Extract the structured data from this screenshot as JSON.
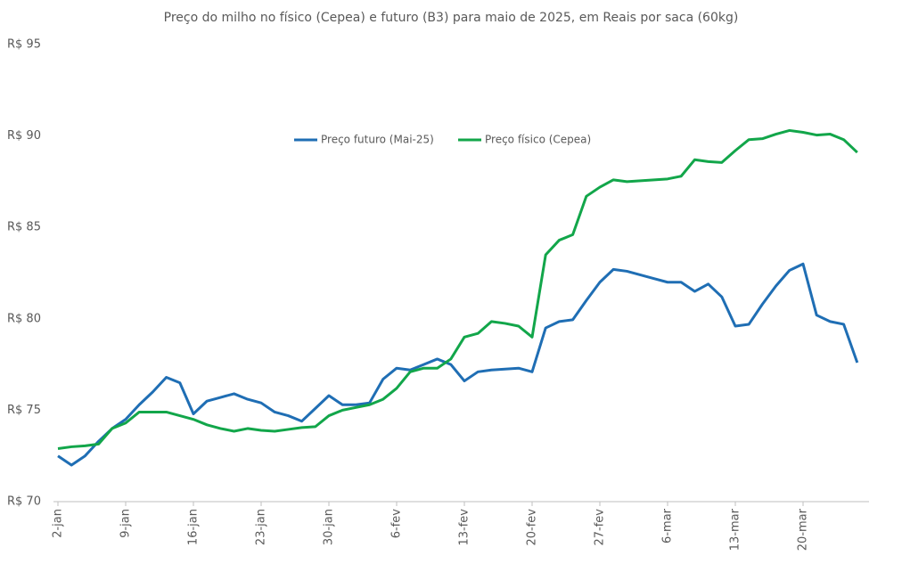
{
  "chart_data": {
    "type": "line",
    "title": "Preço do milho no físico (Cepea) e futuro (B3) para maio de 2025, em Reais por saca (60kg)",
    "categories": [
      "2-jan",
      null,
      null,
      null,
      null,
      "9-jan",
      null,
      null,
      null,
      null,
      "16-jan",
      null,
      null,
      null,
      null,
      "23-jan",
      null,
      null,
      null,
      null,
      "30-jan",
      null,
      null,
      null,
      null,
      "6-fev",
      null,
      null,
      null,
      null,
      "13-fev",
      null,
      null,
      null,
      null,
      "20-fev",
      null,
      null,
      null,
      null,
      "27-fev",
      null,
      null,
      null,
      null,
      "6-mar",
      null,
      null,
      null,
      null,
      "13-mar",
      null,
      null,
      null,
      null,
      "20-mar",
      null,
      null,
      null,
      null
    ],
    "series": [
      {
        "name": "Preço futuro (Mai-25)",
        "color": "#1f6eb4",
        "values": [
          72.5,
          72.0,
          72.5,
          73.3,
          74.0,
          74.5,
          75.3,
          76.0,
          76.8,
          76.5,
          74.8,
          75.5,
          75.7,
          75.9,
          75.6,
          75.4,
          74.9,
          74.7,
          74.4,
          75.1,
          75.8,
          75.3,
          75.3,
          75.4,
          76.7,
          77.3,
          77.2,
          77.5,
          77.8,
          77.5,
          76.6,
          77.1,
          77.2,
          77.25,
          77.3,
          77.1,
          79.5,
          79.85,
          79.95,
          81.0,
          82.0,
          82.7,
          82.6,
          82.4,
          82.2,
          82.0,
          82.0,
          81.5,
          81.9,
          81.2,
          79.6,
          79.7,
          80.8,
          81.8,
          82.65,
          83.0,
          80.2,
          79.85,
          79.7,
          77.6
        ]
      },
      {
        "name": "Preço físico (Cepea)",
        "color": "#12a64a",
        "values": [
          72.9,
          73.0,
          73.05,
          73.15,
          74.0,
          74.3,
          74.9,
          74.9,
          74.9,
          74.7,
          74.5,
          74.2,
          74.0,
          73.85,
          74.0,
          73.9,
          73.85,
          73.95,
          74.05,
          74.1,
          74.7,
          75.0,
          75.15,
          75.3,
          75.6,
          76.2,
          77.1,
          77.3,
          77.3,
          77.8,
          79.0,
          79.2,
          79.85,
          79.75,
          79.6,
          79.0,
          83.5,
          84.3,
          84.6,
          86.7,
          87.2,
          87.6,
          87.5,
          87.55,
          87.6,
          87.65,
          87.8,
          88.7,
          88.6,
          88.55,
          89.2,
          89.8,
          89.85,
          90.1,
          90.3,
          90.2,
          90.05,
          90.1,
          89.8,
          89.1
        ]
      }
    ],
    "ylim": [
      70,
      95
    ],
    "yticks": [
      {
        "value": 70,
        "label": "R$ 70"
      },
      {
        "value": 75,
        "label": "R$ 75"
      },
      {
        "value": 80,
        "label": "R$ 80"
      },
      {
        "value": 85,
        "label": "R$ 85"
      },
      {
        "value": 90,
        "label": "R$ 90"
      },
      {
        "value": 95,
        "label": "R$ 95"
      }
    ],
    "grid": false
  }
}
